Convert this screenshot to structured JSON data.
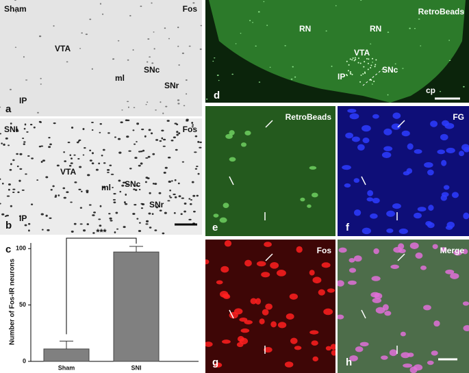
{
  "panels": {
    "a": {
      "letter": "a",
      "condition": "Sham",
      "stain": "Fos",
      "regions": [
        "VTA",
        "ml",
        "SNc",
        "SNr",
        "IP"
      ]
    },
    "b": {
      "letter": "b",
      "condition": "SNI",
      "stain": "Fos",
      "regions": [
        "VTA",
        "ml",
        "SNc",
        "SNr",
        "IP"
      ]
    },
    "c": {
      "letter": "c"
    },
    "d": {
      "letter": "d",
      "stain": "RetroBeads",
      "regions": [
        "RN",
        "RN",
        "VTA",
        "IP",
        "SNc",
        "cp"
      ]
    },
    "e": {
      "letter": "e",
      "stain": "RetroBeads"
    },
    "f": {
      "letter": "f",
      "stain": "FG"
    },
    "g": {
      "letter": "g",
      "stain": "Fos"
    },
    "h": {
      "letter": "h",
      "stain": "Merge"
    }
  },
  "chart_data": {
    "type": "bar",
    "y_label": "Number of Fos-IR neurons",
    "categories": [
      "Sham",
      "SNI"
    ],
    "values": [
      11,
      97
    ],
    "errors": [
      7,
      5
    ],
    "color": "#808080",
    "ylim": [
      0,
      105
    ],
    "yticks": [
      0,
      50,
      100
    ],
    "annotation": "***"
  }
}
